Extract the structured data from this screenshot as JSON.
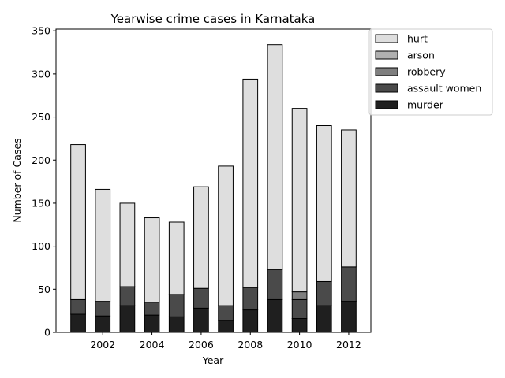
{
  "chart_data": {
    "type": "bar",
    "stacked": true,
    "title": "Yearwise crime cases in Karnataka",
    "xlabel": "Year",
    "ylabel": "Number of Cases",
    "x": [
      2001,
      2002,
      2003,
      2004,
      2005,
      2006,
      2007,
      2008,
      2009,
      2010,
      2011,
      2012
    ],
    "xlim": [
      2000.1,
      2012.9
    ],
    "ylim": [
      0,
      352
    ],
    "xticks": [
      2002,
      2004,
      2006,
      2008,
      2010,
      2012
    ],
    "yticks": [
      0,
      50,
      100,
      150,
      200,
      250,
      300,
      350
    ],
    "legend_position": "outside-top-right",
    "series": [
      {
        "name": "murder",
        "color": "#1f1f1f",
        "values": [
          21,
          19,
          31,
          20,
          18,
          28,
          14,
          26,
          38,
          16,
          31,
          36
        ]
      },
      {
        "name": "assault women",
        "color": "#4a4a4a",
        "values": [
          17,
          17,
          22,
          15,
          26,
          23,
          17,
          26,
          35,
          22,
          28,
          40
        ]
      },
      {
        "name": "robbery",
        "color": "#7f7f7f",
        "values": [
          0,
          0,
          0,
          0,
          0,
          0,
          0,
          0,
          0,
          9,
          0,
          0
        ]
      },
      {
        "name": "arson",
        "color": "#b0b0b0",
        "values": [
          0,
          0,
          0,
          0,
          0,
          0,
          0,
          0,
          0,
          0,
          0,
          0
        ]
      },
      {
        "name": "hurt",
        "color": "#dedede",
        "values": [
          180,
          130,
          97,
          98,
          84,
          118,
          162,
          242,
          261,
          213,
          181,
          159
        ]
      }
    ],
    "legend_order": [
      "hurt",
      "arson",
      "robbery",
      "assault women",
      "murder"
    ]
  }
}
